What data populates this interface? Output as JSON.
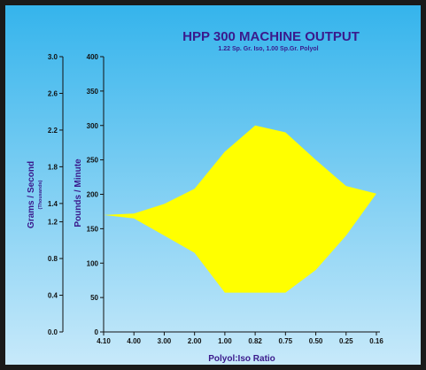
{
  "colors": {
    "frame": "#1a1a1a",
    "bg_top": "#35b4ec",
    "bg_bottom": "#c7e9fa",
    "fill": "#ffff00",
    "title": "#3a1a8c"
  },
  "chart_data": {
    "type": "area",
    "title": "HPP 300 MACHINE OUTPUT",
    "subtitle": "1.22 Sp. Gr. Iso,  1.00 Sp.Gr. Polyol",
    "xlabel": "Polyol:Iso Ratio",
    "ylabel_left": "Grams / Second",
    "ylabel_left_units": "(Thousands)",
    "ylabel_right": "Pounds / Minute",
    "categories": [
      "4.10",
      "4.00",
      "3.00",
      "2.00",
      "1.00",
      "0.82",
      "0.75",
      "0.50",
      "0.25",
      "0.16"
    ],
    "series": [
      {
        "values_upper": [
          170,
          172,
          186,
          208,
          262,
          300,
          290,
          250,
          212,
          201
        ],
        "values_lower": [
          170,
          165,
          140,
          115,
          57,
          57,
          57,
          90,
          140,
          201
        ]
      }
    ],
    "ylim_pounds": [
      0,
      400
    ],
    "yticks_pounds": [
      "0",
      "50",
      "100",
      "150",
      "200",
      "250",
      "300",
      "350",
      "400"
    ],
    "yticks_grams": [
      {
        "label": "0.0",
        "value": 0.0
      },
      {
        "label": "0.4",
        "value": 0.4
      },
      {
        "label": "0.8",
        "value": 0.8
      },
      {
        "label": "1.2",
        "value": 1.2
      },
      {
        "label": "1.4",
        "value": 1.4
      },
      {
        "label": "1.8",
        "value": 1.8
      },
      {
        "label": "2.2",
        "value": 2.2
      },
      {
        "label": "2.6",
        "value": 2.6
      },
      {
        "label": "3.0",
        "value": 3.0
      }
    ],
    "ylim_grams": [
      0,
      3.0
    ],
    "grid": false,
    "legend": "none"
  }
}
